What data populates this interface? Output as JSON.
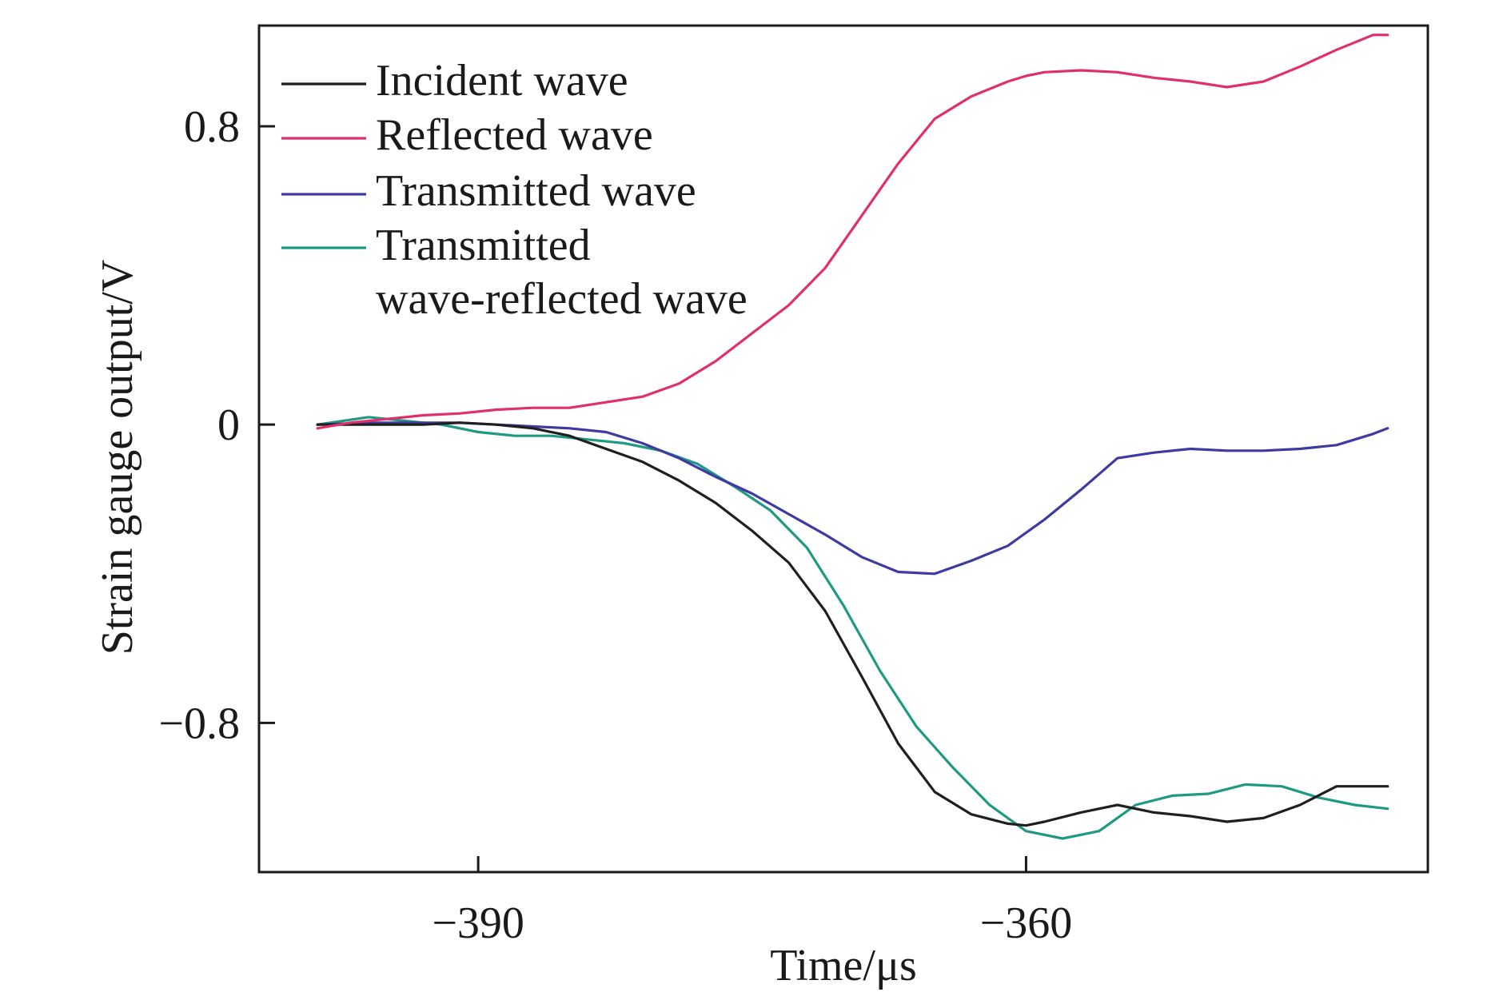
{
  "chart_data": {
    "type": "line",
    "xlabel": "Time/μs",
    "ylabel": "Strain gauge output/V",
    "xlim": [
      -402,
      -338
    ],
    "ylim": [
      -1.2,
      1.07
    ],
    "x_ticks": [
      -390,
      -360
    ],
    "x_tick_labels": [
      "−390",
      "−360"
    ],
    "y_ticks": [
      0.8,
      0,
      -0.8
    ],
    "y_tick_labels": [
      "0.8",
      "0",
      "−0.8"
    ],
    "grid": false,
    "legend_position": "top-left",
    "series": [
      {
        "name": "Incident wave",
        "color": "#1f1f1f",
        "x": [
          -398.8,
          -396,
          -393,
          -391,
          -389,
          -387,
          -385,
          -383,
          -381,
          -379,
          -377,
          -375,
          -373,
          -371,
          -369,
          -367,
          -365,
          -363,
          -361,
          -360,
          -359,
          -357,
          -355,
          -353,
          -351,
          -349,
          -347,
          -345,
          -343,
          -340.2
        ],
        "y": [
          0.0,
          0.0,
          0.0,
          0.005,
          0.0,
          -0.01,
          -0.03,
          -0.065,
          -0.1,
          -0.15,
          -0.21,
          -0.285,
          -0.37,
          -0.5,
          -0.675,
          -0.855,
          -0.985,
          -1.045,
          -1.07,
          -1.075,
          -1.065,
          -1.04,
          -1.02,
          -1.04,
          -1.05,
          -1.065,
          -1.055,
          -1.02,
          -0.97,
          -0.97
        ]
      },
      {
        "name": "Reflected wave",
        "color": "#e0306a",
        "x": [
          -398.8,
          -397,
          -395,
          -393,
          -391,
          -389,
          -387,
          -385,
          -383,
          -381,
          -379,
          -377,
          -375,
          -373,
          -371,
          -369,
          -367,
          -365,
          -363,
          -361,
          -360,
          -359,
          -357,
          -355,
          -353,
          -351,
          -349,
          -347,
          -345,
          -343,
          -341,
          -340.2
        ],
        "y": [
          -0.01,
          0.005,
          0.015,
          0.025,
          0.03,
          0.04,
          0.045,
          0.045,
          0.06,
          0.075,
          0.11,
          0.17,
          0.245,
          0.32,
          0.42,
          0.56,
          0.7,
          0.82,
          0.88,
          0.92,
          0.935,
          0.945,
          0.95,
          0.945,
          0.93,
          0.92,
          0.905,
          0.92,
          0.96,
          1.005,
          1.045,
          1.045
        ]
      },
      {
        "name": "Transmitted wave",
        "color": "#3f3aa2",
        "x": [
          -398.8,
          -396,
          -393,
          -391,
          -389,
          -387,
          -385,
          -383,
          -381,
          -379,
          -377,
          -375,
          -373,
          -371,
          -369,
          -367,
          -365,
          -363,
          -361,
          -359,
          -357,
          -355,
          -353,
          -351,
          -349,
          -347,
          -345,
          -343,
          -341,
          -340.2
        ],
        "y": [
          0.0,
          0.005,
          0.005,
          0.005,
          0.0,
          -0.005,
          -0.01,
          -0.02,
          -0.05,
          -0.09,
          -0.14,
          -0.185,
          -0.24,
          -0.295,
          -0.355,
          -0.395,
          -0.4,
          -0.365,
          -0.325,
          -0.255,
          -0.175,
          -0.09,
          -0.075,
          -0.065,
          -0.07,
          -0.07,
          -0.065,
          -0.055,
          -0.025,
          -0.01
        ]
      },
      {
        "name": "Transmitted wave-reflected wave",
        "color": "#1f9a82",
        "x": [
          -398.8,
          -396,
          -394,
          -392,
          -390,
          -388,
          -386,
          -384,
          -382,
          -380,
          -378,
          -376,
          -374,
          -372,
          -370,
          -368,
          -366,
          -364,
          -362,
          -360,
          -358,
          -356,
          -354,
          -352,
          -350,
          -348,
          -346,
          -344,
          -342,
          -340.2
        ],
        "y": [
          0.0,
          0.02,
          0.01,
          0.0,
          -0.02,
          -0.03,
          -0.03,
          -0.04,
          -0.05,
          -0.07,
          -0.105,
          -0.165,
          -0.23,
          -0.33,
          -0.485,
          -0.66,
          -0.81,
          -0.92,
          -1.02,
          -1.09,
          -1.11,
          -1.09,
          -1.02,
          -0.995,
          -0.99,
          -0.965,
          -0.97,
          -1.0,
          -1.02,
          -1.03
        ]
      }
    ]
  }
}
